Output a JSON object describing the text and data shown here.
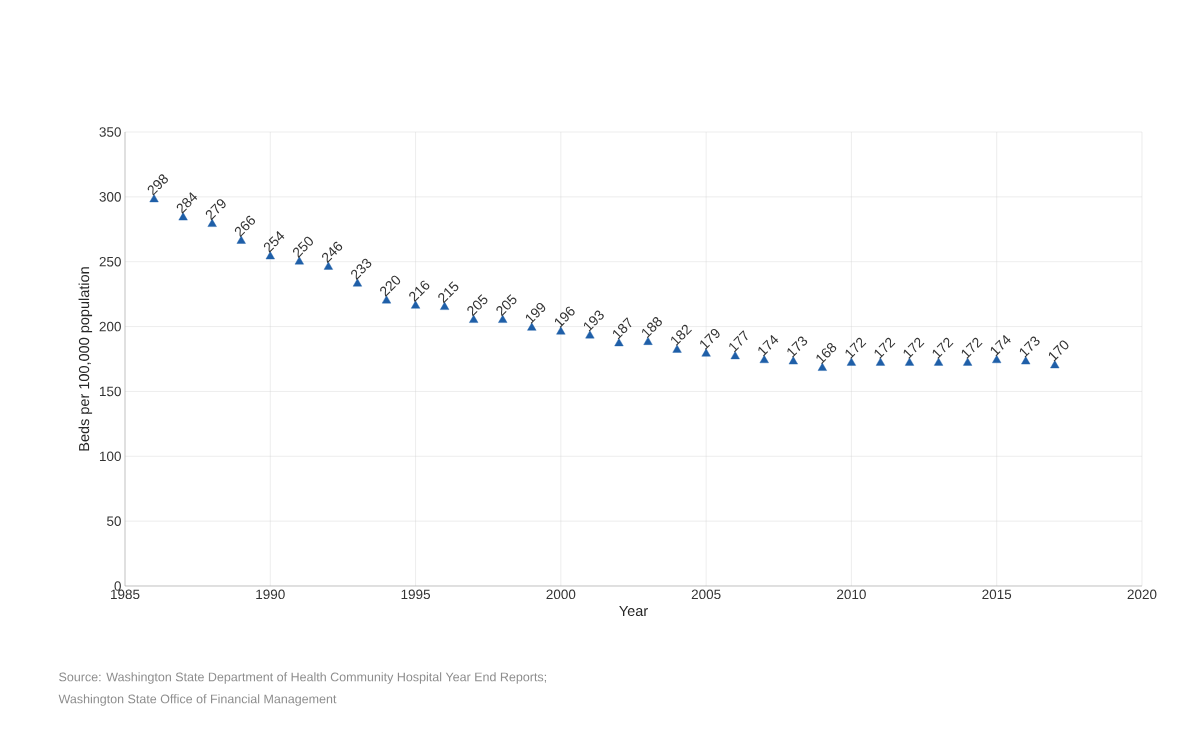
{
  "chart_data": {
    "type": "scatter",
    "xlabel": "Year",
    "ylabel": "Beds per 100,000 population",
    "x": [
      1986,
      1987,
      1988,
      1989,
      1990,
      1991,
      1992,
      1993,
      1994,
      1995,
      1996,
      1997,
      1998,
      1999,
      2000,
      2001,
      2002,
      2003,
      2004,
      2005,
      2006,
      2007,
      2008,
      2009,
      2010,
      2011,
      2012,
      2013,
      2014,
      2015,
      2016,
      2017
    ],
    "values": [
      298,
      284,
      279,
      266,
      254,
      250,
      246,
      233,
      220,
      216,
      215,
      205,
      205,
      199,
      196,
      193,
      187,
      188,
      182,
      179,
      177,
      174,
      173,
      168,
      172,
      172,
      172,
      172,
      172,
      174,
      173,
      170
    ],
    "color": "#1f5fa8",
    "marker": "triangle",
    "data_labels": true,
    "grid": true,
    "xlim": [
      1985,
      2020
    ],
    "xticks": [
      1985,
      1990,
      1995,
      2000,
      2005,
      2010,
      2015,
      2020
    ],
    "ylim": [
      0,
      350
    ],
    "yticks": [
      0,
      50,
      100,
      150,
      200,
      250,
      300,
      350
    ],
    "annotations": [
      "Source: Washington State Department of Health Community Hospital Year End Reports;",
      "Washington State Office of Financial Management"
    ]
  }
}
